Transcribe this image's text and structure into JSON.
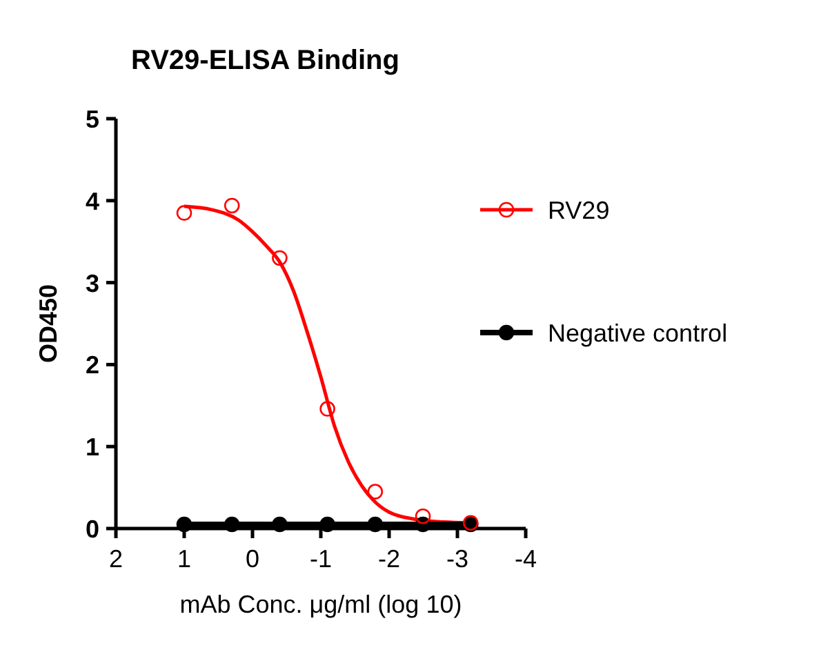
{
  "chart_data": {
    "type": "scatter",
    "title": "RV29-ELISA Binding",
    "xlabel": "mAb Conc. μg/ml (log 10)",
    "ylabel": "OD450",
    "xlim": [
      2,
      -4
    ],
    "xticks": [
      2,
      1,
      0,
      -1,
      -2,
      -3,
      -4
    ],
    "ylim": [
      0,
      5
    ],
    "yticks": [
      0,
      1,
      2,
      3,
      4,
      5
    ],
    "grid": false,
    "legend": "right",
    "series": [
      {
        "name": "RV29",
        "type": "scatter",
        "marker": "circle",
        "color": "#ff0000",
        "x": [
          1,
          0.301,
          -0.398,
          -1.097,
          -1.796,
          -2.495,
          -3.194
        ],
        "values": [
          3.85,
          3.94,
          3.3,
          1.46,
          0.45,
          0.15,
          0.07
        ]
      },
      {
        "type": "line",
        "marker": "none",
        "color": "#ff0000",
        "x": [
          1,
          0.6,
          0.2,
          0,
          -0.2,
          -0.4,
          -0.6,
          -0.8,
          -1,
          -1.2,
          -1.4,
          -1.6,
          -1.8,
          -2,
          -2.4,
          -2.8,
          -3.2
        ],
        "values": [
          3.93,
          3.89,
          3.76,
          3.62,
          3.45,
          3.25,
          2.9,
          2.4,
          1.85,
          1.25,
          0.82,
          0.52,
          0.32,
          0.2,
          0.11,
          0.08,
          0.07
        ]
      },
      {
        "name": "Negative control",
        "type": "line",
        "marker": "circle",
        "color": "#000000",
        "x": [
          1,
          0.301,
          -0.398,
          -1.097,
          -1.796,
          -2.495,
          -3.194
        ],
        "values": [
          0.05,
          0.05,
          0.05,
          0.05,
          0.05,
          0.05,
          0.05
        ]
      }
    ]
  }
}
